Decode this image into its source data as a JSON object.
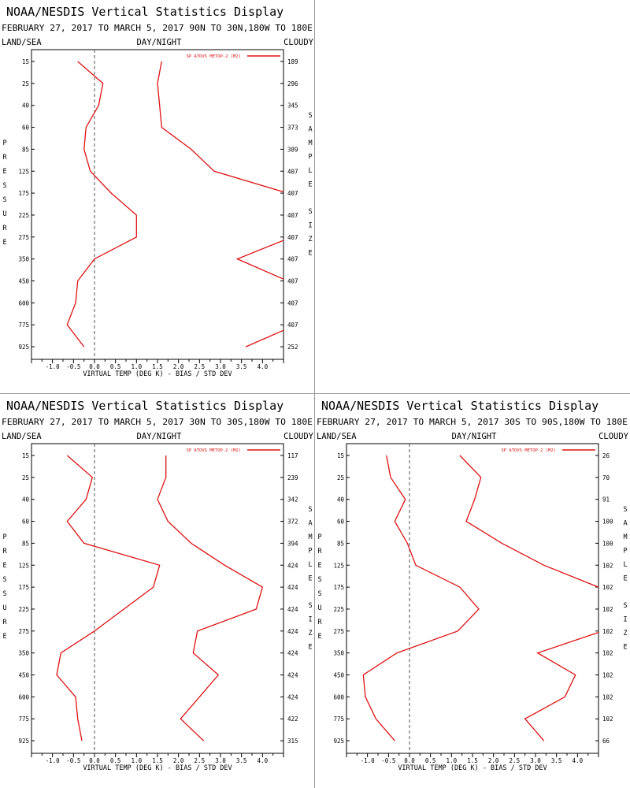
{
  "chart_data": [
    {
      "type": "line",
      "title": "NOAA/NESDIS Vertical Statistics Display",
      "subtitle": "FEBRUARY 27, 2017 TO MARCH 5, 2017 90N TO 30N,180W TO 180E",
      "corner_left": "LAND/SEA",
      "corner_center": "DAY/NIGHT",
      "corner_right": "CLOUDY",
      "xlabel": "VIRTUAL TEMP (DEG K) - BIAS / STD DEV",
      "left_axis_label": "PRESSURE",
      "right_axis_label": "SAMPLE SIZE",
      "legend_label": "SP ATOVS METOP-2 (M2)",
      "legend_position": "top-right",
      "color": "#dd1111",
      "xlim": [
        -1.5,
        4.5
      ],
      "x_ticks": [
        "-1.0",
        "-0.5",
        "0.0",
        "0.5",
        "1.0",
        "1.5",
        "2.0",
        "2.5",
        "3.0",
        "3.5",
        "4.0"
      ],
      "pressure_levels": [
        "15",
        "25",
        "40",
        "60",
        "85",
        "125",
        "175",
        "225",
        "275",
        "350",
        "450",
        "600",
        "775",
        "925"
      ],
      "sample_sizes": [
        "189",
        "296",
        "345",
        "373",
        "389",
        "407",
        "407",
        "407",
        "407",
        "407",
        "407",
        "407",
        "407",
        "252"
      ],
      "series": [
        {
          "values": [
            -0.4,
            0.2,
            0.1,
            -0.2,
            -0.25,
            -0.1,
            0.4,
            1.0,
            1.0,
            0.0,
            -0.4,
            -0.45,
            -0.65,
            -0.25
          ]
        },
        {
          "values": [
            1.6,
            1.5,
            1.55,
            1.6,
            2.3,
            2.85,
            4.6,
            null,
            4.7,
            3.4,
            4.6,
            null,
            4.8,
            3.6
          ],
          "segments": [
            [
              0,
              6
            ],
            [
              8,
              10
            ],
            [
              11,
              13
            ]
          ],
          "offscale": [
            {
              "from_index": 6,
              "to_index": 7,
              "edge_value": 4.5,
              "at_level": 6.0
            },
            {
              "from_index": 8,
              "to_index": 8,
              "edge_value": 4.5,
              "at_level": 8.6
            },
            {
              "from_index": 10,
              "to_index": 10,
              "edge_value": 4.5,
              "at_level": 9.7
            },
            {
              "from_index": 12,
              "to_index": 12,
              "edge_value": 4.5,
              "at_level": 11.3
            }
          ]
        }
      ]
    },
    {
      "type": "line",
      "title": "NOAA/NESDIS Vertical Statistics Display",
      "subtitle": "FEBRUARY 27, 2017 TO MARCH 5, 2017 30N TO 30S,180W TO 180E",
      "corner_left": "LAND/SEA",
      "corner_center": "DAY/NIGHT",
      "corner_right": "CLOUDY",
      "xlabel": "VIRTUAL TEMP (DEG K) - BIAS / STD DEV",
      "left_axis_label": "PRESSURE",
      "right_axis_label": "SAMPLE SIZE",
      "legend_label": "SP ATOVS METOP-2 (M2)",
      "legend_position": "top-right",
      "color": "#dd1111",
      "xlim": [
        -1.5,
        4.5
      ],
      "x_ticks": [
        "-1.0",
        "-0.5",
        "0.0",
        "0.5",
        "1.0",
        "1.5",
        "2.0",
        "2.5",
        "3.0",
        "3.5",
        "4.0"
      ],
      "pressure_levels": [
        "15",
        "25",
        "40",
        "60",
        "85",
        "125",
        "175",
        "225",
        "275",
        "350",
        "450",
        "600",
        "775",
        "925"
      ],
      "sample_sizes": [
        "117",
        "239",
        "342",
        "372",
        "394",
        "424",
        "424",
        "424",
        "424",
        "424",
        "424",
        "424",
        "422",
        "315"
      ],
      "series": [
        {
          "values": [
            -0.65,
            -0.05,
            -0.2,
            -0.65,
            -0.25,
            1.55,
            1.4,
            0.7,
            0.0,
            -0.8,
            -0.9,
            -0.45,
            -0.4,
            -0.3
          ]
        },
        {
          "values": [
            1.7,
            1.7,
            1.5,
            1.75,
            2.3,
            3.1,
            4.0,
            3.85,
            2.45,
            2.35,
            2.95,
            2.5,
            2.05,
            2.6
          ]
        }
      ]
    },
    {
      "type": "line",
      "title": "NOAA/NESDIS Vertical Statistics Display",
      "subtitle": "FEBRUARY 27, 2017 TO MARCH 5, 2017 30S TO 90S,180W TO 180E",
      "corner_left": "LAND/SEA",
      "corner_center": "DAY/NIGHT",
      "corner_right": "CLOUDY",
      "xlabel": "VIRTUAL TEMP (DEG K) - BIAS / STD DEV",
      "left_axis_label": "PRESSURE",
      "right_axis_label": "SAMPLE SIZE",
      "legend_label": "SP ATOVS METOP-2 (M2)",
      "legend_position": "top-right",
      "color": "#dd1111",
      "xlim": [
        -1.5,
        4.5
      ],
      "x_ticks": [
        "-1.0",
        "-0.5",
        "0.0",
        "0.5",
        "1.0",
        "1.5",
        "2.0",
        "2.5",
        "3.0",
        "3.5",
        "4.0"
      ],
      "pressure_levels": [
        "15",
        "25",
        "40",
        "60",
        "85",
        "125",
        "175",
        "225",
        "275",
        "350",
        "450",
        "600",
        "775",
        "925"
      ],
      "sample_sizes": [
        "26",
        "70",
        "91",
        "100",
        "100",
        "102",
        "102",
        "102",
        "102",
        "102",
        "102",
        "102",
        "102",
        "66"
      ],
      "series": [
        {
          "values": [
            -0.55,
            -0.45,
            -0.1,
            -0.35,
            -0.05,
            0.15,
            1.2,
            1.65,
            1.15,
            -0.3,
            -1.1,
            -1.05,
            -0.8,
            -0.35
          ]
        },
        {
          "values": [
            1.2,
            1.7,
            1.55,
            1.35,
            2.2,
            3.2,
            4.5,
            null,
            4.6,
            3.05,
            3.95,
            3.7,
            2.75,
            3.2
          ],
          "segments": [
            [
              0,
              6
            ],
            [
              8,
              13
            ]
          ],
          "offscale": [
            {
              "from_index": 6,
              "to_index": 7,
              "edge_value": 4.5,
              "at_level": 6.0
            },
            {
              "from_index": 8,
              "to_index": 8,
              "edge_value": 4.5,
              "at_level": 7.9
            }
          ]
        }
      ]
    }
  ]
}
